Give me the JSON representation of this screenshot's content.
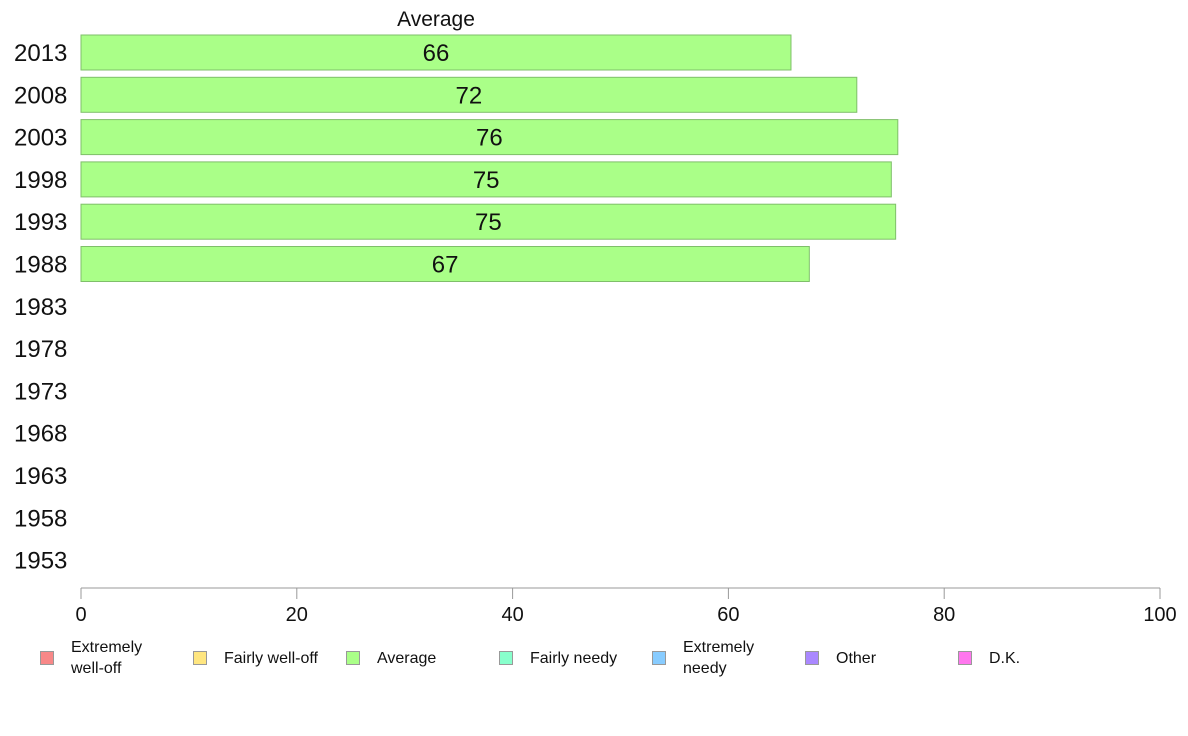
{
  "chart_data": {
    "type": "bar",
    "orientation": "horizontal",
    "stacked": true,
    "categories": [
      "2013",
      "2008",
      "2003",
      "1998",
      "1993",
      "1988",
      "1983",
      "1978",
      "1973",
      "1968",
      "1963",
      "1958",
      "1953"
    ],
    "series": [
      {
        "name": "Extremely well-off",
        "color": "#f88888",
        "values": [
          null,
          null,
          null,
          null,
          null,
          null,
          null,
          null,
          null,
          null,
          null,
          null,
          null
        ]
      },
      {
        "name": "Fairly well-off",
        "color": "#ffe680",
        "values": [
          null,
          null,
          null,
          null,
          null,
          null,
          null,
          null,
          null,
          null,
          null,
          null,
          null
        ]
      },
      {
        "name": "Average",
        "color": "#aaff88",
        "values": [
          65.8,
          71.9,
          75.7,
          75.1,
          75.5,
          67.5,
          null,
          null,
          null,
          null,
          null,
          null,
          null
        ],
        "labels": [
          "66",
          "72",
          "76",
          "75",
          "75",
          "67"
        ]
      },
      {
        "name": "Fairly needy",
        "color": "#88ffcc",
        "values": [
          null,
          null,
          null,
          null,
          null,
          null,
          null,
          null,
          null,
          null,
          null,
          null,
          null
        ]
      },
      {
        "name": "Extremely needy",
        "color": "#88ccff",
        "values": [
          null,
          null,
          null,
          null,
          null,
          null,
          null,
          null,
          null,
          null,
          null,
          null,
          null
        ]
      },
      {
        "name": "Other",
        "color": "#aa88ff",
        "values": [
          null,
          null,
          null,
          null,
          null,
          null,
          null,
          null,
          null,
          null,
          null,
          null,
          null
        ]
      },
      {
        "name": "D.K.",
        "color": "#ff77ee",
        "values": [
          null,
          null,
          null,
          null,
          null,
          null,
          null,
          null,
          null,
          null,
          null,
          null,
          null
        ]
      }
    ],
    "visible_series_title": "Average",
    "xlim": [
      0,
      100
    ],
    "xticks": [
      "0",
      "20",
      "40",
      "60",
      "80",
      "100"
    ],
    "grid": false,
    "legend_position": "bottom"
  },
  "legend": [
    {
      "line1": "Extremely",
      "line2": "well-off",
      "color": "#f88888"
    },
    {
      "line1": "Fairly well-off",
      "line2": "",
      "color": "#ffe680"
    },
    {
      "line1": "Average",
      "line2": "",
      "color": "#aaff88"
    },
    {
      "line1": "Fairly needy",
      "line2": "",
      "color": "#88ffcc"
    },
    {
      "line1": "Extremely",
      "line2": "needy",
      "color": "#88ccff"
    },
    {
      "line1": "Other",
      "line2": "",
      "color": "#aa88ff"
    },
    {
      "line1": "D.K.",
      "line2": "",
      "color": "#ff77ee"
    }
  ]
}
